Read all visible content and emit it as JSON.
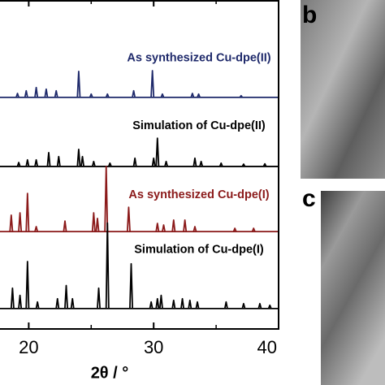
{
  "chart_data": {
    "type": "line",
    "xlabel": "2θ / °",
    "xlim": [
      17.7,
      40
    ],
    "ylim": [
      0,
      100
    ],
    "xticks": [
      20,
      30,
      40
    ],
    "xminorticks": [
      25,
      35
    ],
    "series": [
      {
        "name": "As synthesized Cu-dpe(II)",
        "color": "#1f2a6b",
        "offset": 70.4,
        "x": [
          19.1,
          19.8,
          20.6,
          21.4,
          22.2,
          24.0,
          25.0,
          26.3,
          28.4,
          29.9,
          30.7,
          33.1,
          33.6,
          37.0
        ],
        "values": [
          1.2,
          2,
          3,
          2.5,
          2,
          7.9,
          1,
          1,
          2,
          8.1,
          1,
          1.2,
          1,
          0.5
        ]
      },
      {
        "name": "Simulation of Cu-dpe(II)",
        "color": "#000000",
        "offset": 49.4,
        "x": [
          19.2,
          19.9,
          20.6,
          21.6,
          22.4,
          24.0,
          24.3,
          25.2,
          26.5,
          28.5,
          30.0,
          30.3,
          31.0,
          33.3,
          33.8,
          35.4,
          37.2,
          38.9
        ],
        "values": [
          1.2,
          2,
          2,
          4.2,
          3,
          5.2,
          3,
          1.5,
          1,
          2.5,
          2.5,
          8.6,
          1.5,
          2.5,
          1.5,
          1,
          0.7,
          0.8
        ]
      },
      {
        "name": "As synthesized Cu-dpe(I)",
        "color": "#8b1a1a",
        "offset": 29.6,
        "x": [
          18.6,
          19.3,
          19.9,
          20.6,
          22.9,
          25.2,
          25.5,
          26.2,
          28.0,
          30.3,
          30.8,
          31.6,
          32.5,
          33.3,
          36.5,
          38.0
        ],
        "values": [
          5,
          5.7,
          11.6,
          1.5,
          3.2,
          5.7,
          4,
          19.8,
          7.4,
          2.5,
          2,
          3.5,
          3.5,
          1.5,
          1,
          1
        ]
      },
      {
        "name": "Simulation of Cu-dpe(I)",
        "color": "#000000",
        "offset": 6.2,
        "x": [
          18.7,
          19.3,
          19.9,
          20.7,
          22.3,
          23.0,
          23.5,
          25.6,
          26.3,
          28.2,
          29.8,
          30.3,
          30.6,
          31.6,
          32.3,
          32.9,
          33.5,
          35.8,
          37.2,
          38.5,
          39.3
        ],
        "values": [
          6.2,
          4,
          14.3,
          2,
          3,
          7,
          3,
          6.2,
          26,
          13.6,
          2,
          3,
          4,
          2.5,
          3,
          2.5,
          2,
          2,
          1.5,
          1.5,
          1
        ]
      }
    ]
  },
  "panels": [
    {
      "label": "b"
    },
    {
      "label": "c"
    }
  ]
}
